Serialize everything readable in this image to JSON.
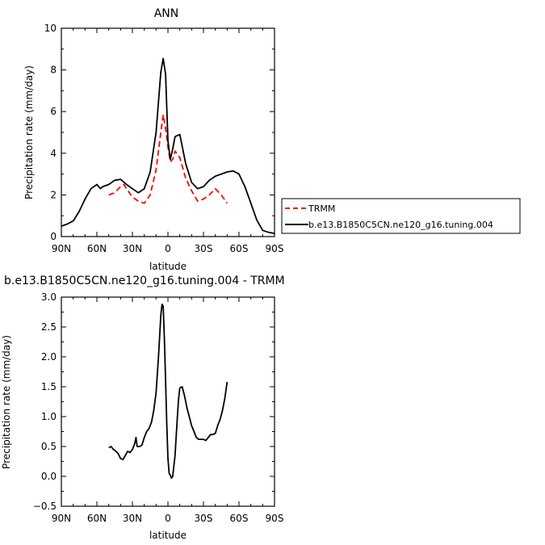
{
  "chart_data": [
    {
      "type": "line",
      "title": "ANN",
      "xlabel": "latitude",
      "ylabel": "Precipitation rate (mm/day)",
      "xlim": [
        90,
        -90
      ],
      "ylim": [
        0,
        10
      ],
      "x_tick_values": [
        90,
        60,
        30,
        0,
        -30,
        -60,
        -90
      ],
      "x_tick_labels": [
        "90N",
        "60N",
        "30N",
        "0",
        "30S",
        "60S",
        "90S"
      ],
      "y_tick_values": [
        0,
        2,
        4,
        6,
        8,
        10
      ],
      "y_tick_labels": [
        "0",
        "2",
        "4",
        "6",
        "8",
        "10"
      ],
      "legend": {
        "placement": "outside-right"
      },
      "series": [
        {
          "name": "TRMM",
          "color": "#ff0000",
          "dash": "dashed",
          "x": [
            50,
            45,
            40,
            37,
            35,
            30,
            25,
            20,
            15,
            10,
            6,
            4,
            2,
            0,
            -2,
            -4,
            -6,
            -10,
            -15,
            -20,
            -25,
            -30,
            -35,
            -40,
            -45,
            -50
          ],
          "y": [
            2.0,
            2.1,
            2.4,
            2.5,
            2.3,
            1.9,
            1.7,
            1.6,
            2.0,
            3.2,
            5.0,
            5.85,
            5.2,
            4.3,
            3.6,
            3.7,
            4.1,
            3.8,
            2.8,
            2.2,
            1.7,
            1.8,
            2.0,
            2.3,
            2.0,
            1.6
          ]
        },
        {
          "name": "b.e13.B1850C5CN.ne120_g16.tuning.004",
          "color": "#000000",
          "dash": "solid",
          "x": [
            90,
            85,
            80,
            75,
            70,
            65,
            60,
            57,
            55,
            50,
            45,
            40,
            35,
            30,
            25,
            20,
            15,
            10,
            6,
            4,
            2,
            0,
            -2,
            -4,
            -6,
            -10,
            -15,
            -20,
            -25,
            -30,
            -35,
            -40,
            -45,
            -50,
            -55,
            -60,
            -65,
            -70,
            -75,
            -80,
            -85,
            -90
          ],
          "y": [
            0.5,
            0.6,
            0.75,
            1.2,
            1.8,
            2.3,
            2.5,
            2.3,
            2.4,
            2.5,
            2.7,
            2.75,
            2.5,
            2.3,
            2.1,
            2.3,
            3.1,
            5.0,
            7.9,
            8.55,
            7.8,
            4.6,
            3.7,
            4.2,
            4.8,
            4.9,
            3.5,
            2.6,
            2.3,
            2.4,
            2.7,
            2.9,
            3.0,
            3.1,
            3.15,
            3.0,
            2.4,
            1.6,
            0.8,
            0.3,
            0.2,
            0.15
          ]
        }
      ]
    },
    {
      "type": "line",
      "title": "b.e13.B1850C5CN.ne120_g16.tuning.004 - TRMM",
      "xlabel": "latitude",
      "ylabel": "Precipitation rate (mm/day)",
      "xlim": [
        90,
        -90
      ],
      "ylim": [
        -0.5,
        3.0
      ],
      "x_tick_values": [
        90,
        60,
        30,
        0,
        -30,
        -60,
        -90
      ],
      "x_tick_labels": [
        "90N",
        "60N",
        "30N",
        "0",
        "30S",
        "60S",
        "90S"
      ],
      "y_tick_values": [
        -0.5,
        0,
        0.5,
        1.0,
        1.5,
        2.0,
        2.5,
        3.0
      ],
      "y_tick_labels": [
        "−0.5",
        "0.0",
        "0.5",
        "1.0",
        "1.5",
        "2.0",
        "2.5",
        "3.0"
      ],
      "series": [
        {
          "color": "#000000",
          "dash": "solid",
          "x": [
            50,
            48,
            46,
            44,
            42,
            40,
            38,
            36,
            34,
            32,
            30,
            28,
            27,
            26,
            24,
            22,
            20,
            18,
            16,
            14,
            12,
            10,
            8,
            6,
            5,
            4,
            3,
            2,
            1,
            0,
            -1,
            -2,
            -3,
            -4,
            -6,
            -8,
            -9,
            -10,
            -12,
            -14,
            -16,
            -18,
            -20,
            -22,
            -24,
            -26,
            -28,
            -30,
            -32,
            -34,
            -36,
            -38,
            -40,
            -42,
            -44,
            -46,
            -48,
            -50
          ],
          "y": [
            0.48,
            0.5,
            0.45,
            0.42,
            0.38,
            0.3,
            0.28,
            0.35,
            0.42,
            0.4,
            0.45,
            0.55,
            0.65,
            0.5,
            0.5,
            0.52,
            0.65,
            0.75,
            0.8,
            0.9,
            1.1,
            1.4,
            2.0,
            2.7,
            2.88,
            2.85,
            2.3,
            1.6,
            0.9,
            0.3,
            0.05,
            0.02,
            -0.03,
            0.0,
            0.35,
            1.0,
            1.3,
            1.48,
            1.5,
            1.35,
            1.15,
            1.0,
            0.85,
            0.75,
            0.65,
            0.62,
            0.62,
            0.62,
            0.6,
            0.65,
            0.7,
            0.7,
            0.72,
            0.85,
            0.95,
            1.1,
            1.3,
            1.58
          ]
        }
      ]
    }
  ]
}
